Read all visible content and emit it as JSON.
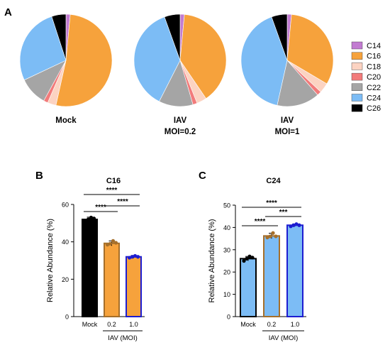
{
  "panels": {
    "a": "A",
    "b": "B",
    "c": "C"
  },
  "chart_data": [
    {
      "type": "pie",
      "panel": "A",
      "label_lines": [
        "Mock"
      ],
      "categories": [
        "C14",
        "C16",
        "C18",
        "C20",
        "C22",
        "C24",
        "C26"
      ],
      "values": [
        1.5,
        52,
        3,
        1.5,
        10,
        27,
        5
      ]
    },
    {
      "type": "pie",
      "panel": "A",
      "label_lines": [
        "IAV",
        "MOI=0.2"
      ],
      "categories": [
        "C14",
        "C16",
        "C18",
        "C20",
        "C22",
        "C24",
        "C26"
      ],
      "values": [
        1.5,
        39,
        3.5,
        1.5,
        12,
        37,
        5.5
      ]
    },
    {
      "type": "pie",
      "panel": "A",
      "label_lines": [
        "IAV",
        "MOI=1"
      ],
      "categories": [
        "C14",
        "C16",
        "C18",
        "C20",
        "C22",
        "C24",
        "C26"
      ],
      "values": [
        1.5,
        32,
        3.5,
        1.5,
        15,
        41,
        5.5
      ]
    },
    {
      "type": "bar",
      "panel": "B",
      "title": "C16",
      "ylabel": "Relative Abundance (%)",
      "ylim": [
        0,
        60
      ],
      "yticks": [
        0,
        20,
        40,
        60
      ],
      "categories": [
        "Mock",
        "0.2",
        "1.0"
      ],
      "group_label": "IAV (MOI)",
      "values": [
        52,
        39.2,
        32
      ],
      "errors": [
        1.2,
        1.3,
        0.7
      ],
      "points": [
        [
          51,
          52,
          53,
          52.5
        ],
        [
          38.5,
          39,
          40.5,
          39.5
        ],
        [
          31.5,
          32,
          32.5,
          32
        ]
      ],
      "significance": [
        {
          "from": 0,
          "to": 1,
          "label": "****"
        },
        {
          "from": 1,
          "to": 2,
          "label": "****"
        },
        {
          "from": 0,
          "to": 2,
          "label": "****"
        }
      ]
    },
    {
      "type": "bar",
      "panel": "C",
      "title": "C24",
      "ylabel": "Relative Abundance (%)",
      "ylim": [
        0,
        50
      ],
      "yticks": [
        0,
        10,
        20,
        30,
        40,
        50
      ],
      "categories": [
        "Mock",
        "0.2",
        "1.0"
      ],
      "group_label": "IAV (MOI)",
      "values": [
        26,
        36.2,
        41
      ],
      "errors": [
        1.0,
        1.2,
        0.5
      ],
      "points": [
        [
          25,
          26,
          27,
          26.5
        ],
        [
          35.5,
          36,
          37.5,
          36
        ],
        [
          40.5,
          41,
          41.5,
          41
        ]
      ],
      "significance": [
        {
          "from": 0,
          "to": 1,
          "label": "****"
        },
        {
          "from": 1,
          "to": 2,
          "label": "***"
        },
        {
          "from": 0,
          "to": 2,
          "label": "****"
        }
      ]
    }
  ],
  "legend": {
    "placement": "right",
    "items": [
      {
        "label": "C14",
        "color": "#c27bd1"
      },
      {
        "label": "C16",
        "color": "#f6a23c"
      },
      {
        "label": "C18",
        "color": "#fcd3c2"
      },
      {
        "label": "C20",
        "color": "#f27b7b"
      },
      {
        "label": "C22",
        "color": "#a5a5a5"
      },
      {
        "label": "C24",
        "color": "#7cbcf5"
      },
      {
        "label": "C26",
        "color": "#000000"
      }
    ]
  },
  "colors": {
    "pie_edge": "#ffffff",
    "bar_fill_mock_c16": "#000000",
    "bar_fills_c16": [
      "#f6a23c",
      "#f6a23c",
      "#f6a23c"
    ],
    "bar_fills_c24": [
      "#7cbcf5",
      "#7cbcf5",
      "#7cbcf5"
    ],
    "bar_edges": [
      "#000000",
      "#a66f2a",
      "#1d1dd1"
    ],
    "point_colors": [
      "#000000",
      "#a66f2a",
      "#1d1dd1"
    ]
  }
}
